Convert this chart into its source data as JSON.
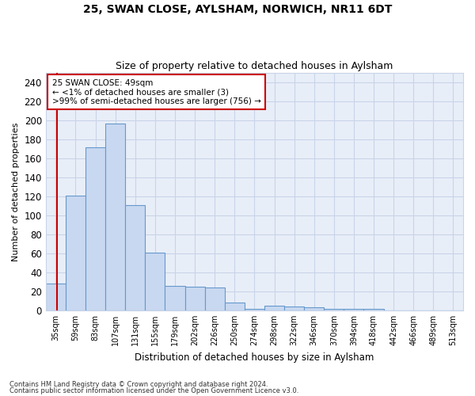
{
  "title1": "25, SWAN CLOSE, AYLSHAM, NORWICH, NR11 6DT",
  "title2": "Size of property relative to detached houses in Aylsham",
  "xlabel": "Distribution of detached houses by size in Aylsham",
  "ylabel": "Number of detached properties",
  "footer1": "Contains HM Land Registry data © Crown copyright and database right 2024.",
  "footer2": "Contains public sector information licensed under the Open Government Licence v3.0.",
  "bar_labels": [
    "35sqm",
    "59sqm",
    "83sqm",
    "107sqm",
    "131sqm",
    "155sqm",
    "179sqm",
    "202sqm",
    "226sqm",
    "250sqm",
    "274sqm",
    "298sqm",
    "322sqm",
    "346sqm",
    "370sqm",
    "394sqm",
    "418sqm",
    "442sqm",
    "466sqm",
    "489sqm",
    "513sqm"
  ],
  "bar_values": [
    28,
    121,
    172,
    197,
    111,
    61,
    26,
    25,
    24,
    8,
    2,
    5,
    4,
    3,
    2,
    2,
    2,
    0,
    0,
    0,
    0
  ],
  "bar_color": "#c8d8f0",
  "bar_edgecolor": "#6699cc",
  "grid_color": "#c8d4e8",
  "annotation_text": "25 SWAN CLOSE: 49sqm\n← <1% of detached houses are smaller (3)\n>99% of semi-detached houses are larger (756) →",
  "annotation_box_edgecolor": "#cc0000",
  "vline_color": "#cc0000",
  "ylim": [
    0,
    250
  ],
  "yticks": [
    0,
    20,
    40,
    60,
    80,
    100,
    120,
    140,
    160,
    180,
    200,
    220,
    240
  ],
  "background_color": "#ffffff",
  "plot_background": "#e8eef8"
}
